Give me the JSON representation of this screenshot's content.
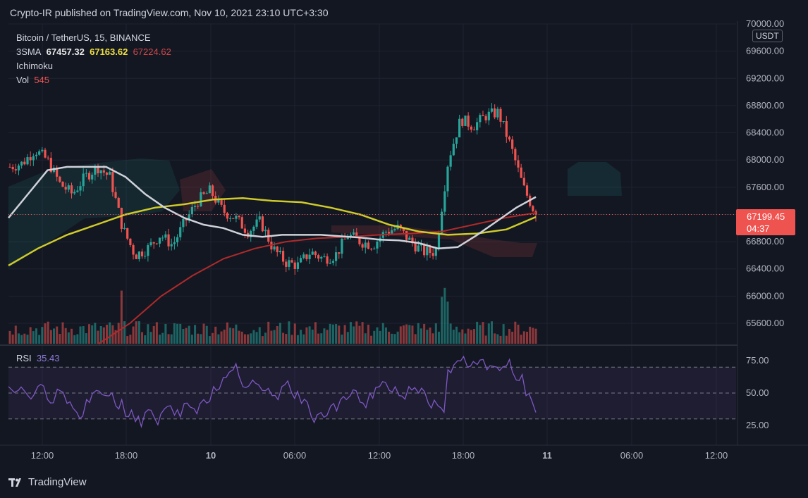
{
  "header": {
    "publisher": "Crypto-IR published on TradingView.com, Nov 10, 2021 23:10 UTC+3:30"
  },
  "legend": {
    "symbol": "Bitcoin / TetherUS, 15, BINANCE",
    "sma_label": "3SMA",
    "sma1": "67457.32",
    "sma2": "67163.62",
    "sma3": "67224.62",
    "ichimoku": "Ichimoku",
    "vol_label": "Vol",
    "vol_value": "545"
  },
  "rsi_legend": {
    "label": "RSI",
    "value": "35.43"
  },
  "currency": "USDT",
  "last_price": {
    "value": "67199.45",
    "countdown": "04:37"
  },
  "brand": "TradingView",
  "colors": {
    "bg": "#131722",
    "up": "#26a69a",
    "down": "#ef5350",
    "sma1": "#cfd2d9",
    "sma2": "#cfcb2a",
    "sma3": "#b02a2a",
    "rsi": "#7e57c2"
  },
  "chart_data": {
    "type": "candlestick",
    "title": "Bitcoin / TetherUS, 15, BINANCE",
    "y_axis": {
      "range": [
        65300,
        70000
      ],
      "ticks": [
        "70000.00",
        "69600.00",
        "69200.00",
        "68800.00",
        "68400.00",
        "68000.00",
        "67600.00",
        "67200.00",
        "66800.00",
        "66400.00",
        "66000.00",
        "65600.00"
      ]
    },
    "x_axis": {
      "ticks": [
        "12:00",
        "18:00",
        "10",
        "06:00",
        "12:00",
        "18:00",
        "11",
        "06:00",
        "12:00"
      ]
    },
    "close_path": [
      67900,
      67950,
      68150,
      68000,
      67650,
      67500,
      67750,
      67900,
      67750,
      67000,
      66600,
      66700,
      66900,
      66750,
      67100,
      67400,
      67550,
      67250,
      67150,
      66950,
      67100,
      66700,
      66500,
      66450,
      66650,
      66550,
      66600,
      66900,
      66800,
      66750,
      66950,
      67000,
      66800,
      66650,
      66650,
      68000,
      68600,
      68500,
      68650,
      68700,
      68200,
      67600,
      67200
    ],
    "sma_fast_path": [
      67150,
      67500,
      67850,
      67900,
      67900,
      67900,
      67750,
      67500,
      67300,
      67150,
      67050,
      67000,
      66900,
      66870,
      66900,
      66900,
      66900,
      66880,
      66860,
      66830,
      66820,
      66780,
      66700,
      66720,
      66900,
      67100,
      67300,
      67457
    ],
    "sma_mid_path": [
      66450,
      66700,
      66900,
      67050,
      67200,
      67300,
      67350,
      67420,
      67440,
      67400,
      67380,
      67300,
      67200,
      67050,
      66950,
      66900,
      66920,
      66980,
      67163
    ],
    "sma_slow_path": [
      65300,
      65600,
      66000,
      66300,
      66550,
      66700,
      66800,
      66850,
      66870,
      66900,
      66920,
      66950,
      67050,
      67150,
      67224
    ],
    "volume_max": 2200,
    "rsi": {
      "levels": [
        "75.00",
        "50.00",
        "25.00"
      ],
      "current": 35.43,
      "path": [
        55,
        52,
        48,
        55,
        45,
        53,
        42,
        35,
        45,
        52,
        48,
        40,
        32,
        28,
        35,
        30,
        38,
        33,
        42,
        38,
        45,
        55,
        62,
        68,
        55,
        60,
        52,
        48,
        55,
        50,
        42,
        32,
        35,
        40,
        45,
        48,
        43,
        50,
        55,
        52,
        48,
        55,
        50,
        42,
        40,
        68,
        75,
        70,
        72,
        68,
        70,
        71,
        60,
        48,
        35
      ]
    }
  }
}
